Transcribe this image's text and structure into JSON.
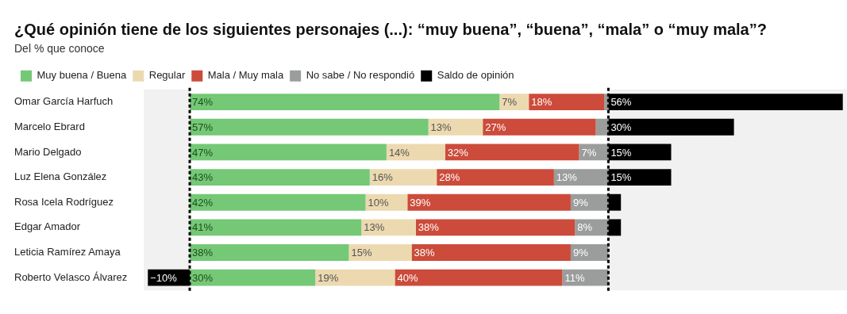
{
  "chart_data": {
    "type": "bar",
    "orientation": "horizontal",
    "stacked": true,
    "title": "¿Qué opinión tiene de los siguientes personajes (...): “muy buena”, “buena”, “mala” o “muy mala”?",
    "subtitle": "Del % que conoce",
    "categories": [
      "Omar García Harfuch",
      "Marcelo Ebrard",
      "Mario Delgado",
      "Luz Elena González",
      "Rosa Icela Rodríguez",
      "Edgar Amador",
      "Leticia Ramírez Amaya",
      "Roberto Velasco Álvarez"
    ],
    "series": [
      {
        "name": "Muy buena / Buena",
        "color": "#74c876",
        "values": [
          74,
          57,
          47,
          43,
          42,
          41,
          38,
          30
        ],
        "value_labels": [
          "74%",
          "57%",
          "47%",
          "43%",
          "42%",
          "41%",
          "38%",
          "30%"
        ]
      },
      {
        "name": "Regular",
        "color": "#ecd9b0",
        "values": [
          7,
          13,
          14,
          16,
          10,
          13,
          15,
          19
        ],
        "value_labels": [
          "7%",
          "13%",
          "14%",
          "16%",
          "10%",
          "13%",
          "15%",
          "19%"
        ]
      },
      {
        "name": "Mala / Muy mala",
        "color": "#cc4b3a",
        "values": [
          18,
          27,
          32,
          28,
          39,
          38,
          38,
          40
        ],
        "value_labels": [
          "18%",
          "27%",
          "32%",
          "28%",
          "39%",
          "38%",
          "38%",
          "40%"
        ]
      },
      {
        "name": "No sabe / No respondió",
        "color": "#9a9d9c",
        "values": [
          1,
          3,
          7,
          13,
          9,
          8,
          9,
          11
        ],
        "value_labels": [
          null,
          null,
          "7%",
          "13%",
          "9%",
          "8%",
          "9%",
          "11%"
        ]
      },
      {
        "name": "Saldo de opinión",
        "color": "#000000",
        "values": [
          56,
          30,
          15,
          15,
          3,
          3,
          0,
          -10
        ],
        "value_labels": [
          "56%",
          "30%",
          "15%",
          "15%",
          null,
          null,
          null,
          "−10%"
        ]
      }
    ],
    "xlim": [
      -11,
      157
    ],
    "tick_labels": "y",
    "legend": "top left",
    "grid": false,
    "bands": [
      {
        "axis": "x",
        "from": -11,
        "to": 0,
        "color": "#f1f1f1"
      },
      {
        "axis": "x",
        "from": 100,
        "to": 157,
        "color": "#f1f1f1"
      }
    ],
    "ref_lines": [
      {
        "axis": "x",
        "value": 0,
        "color": "#000000",
        "line_style": "dashed"
      },
      {
        "axis": "x",
        "value": 100,
        "color": "#000000",
        "line_style": "dashed"
      }
    ]
  }
}
